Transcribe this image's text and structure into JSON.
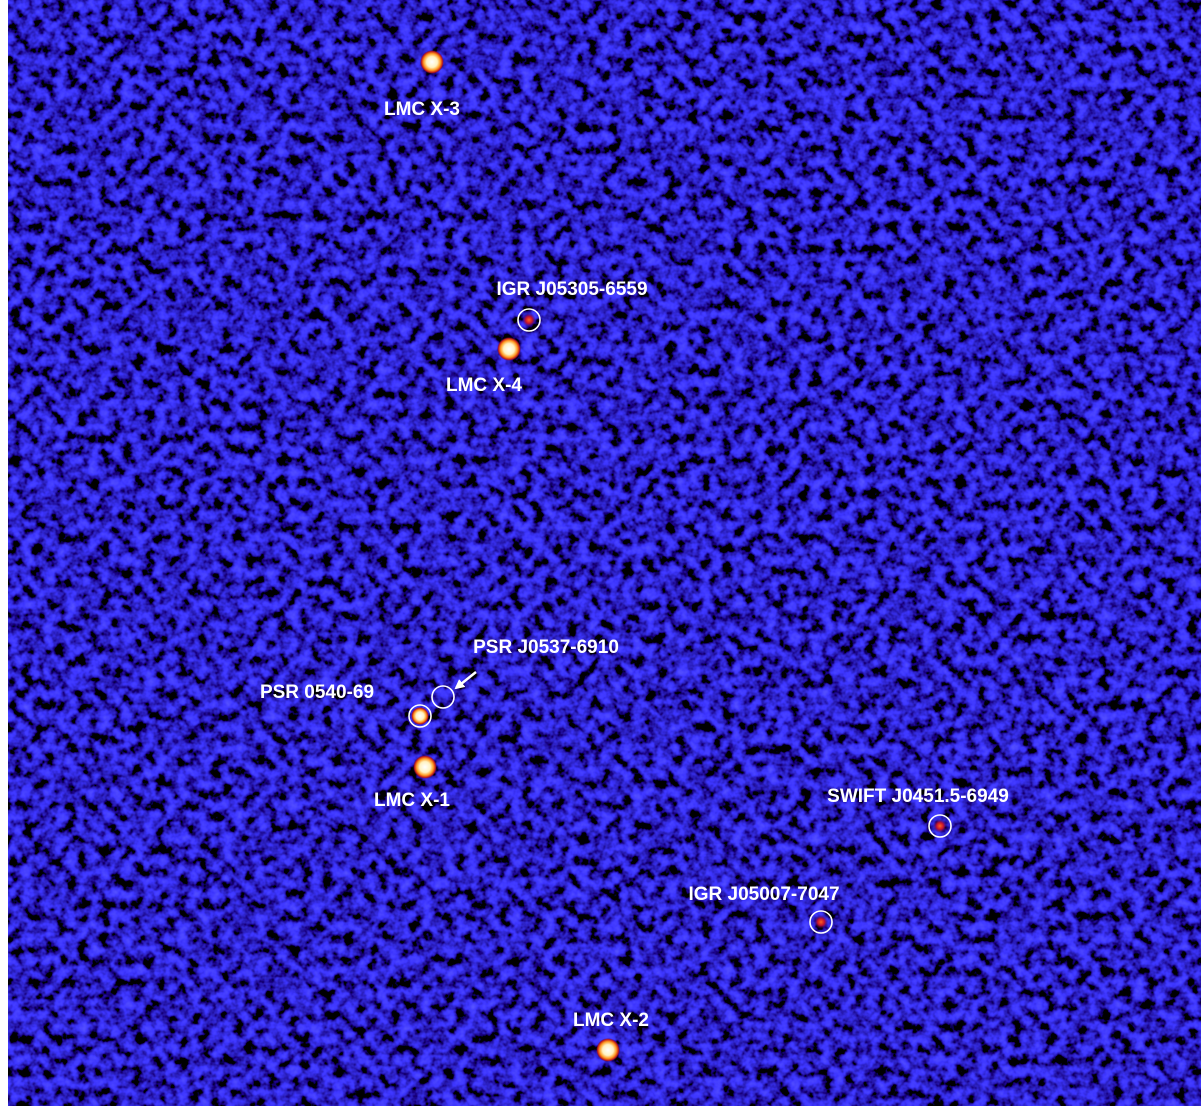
{
  "sources": [
    {
      "label": "LMC X-3"
    },
    {
      "label": "IGR J05305-6559"
    },
    {
      "label": "LMC X-4"
    },
    {
      "label": "PSR J0537-6910"
    },
    {
      "label": "PSR 0540-69"
    },
    {
      "label": "LMC X-1"
    },
    {
      "label": "SWIFT J0451.5-6949"
    },
    {
      "label": "IGR J05007-7047"
    },
    {
      "label": "LMC X-2"
    }
  ]
}
